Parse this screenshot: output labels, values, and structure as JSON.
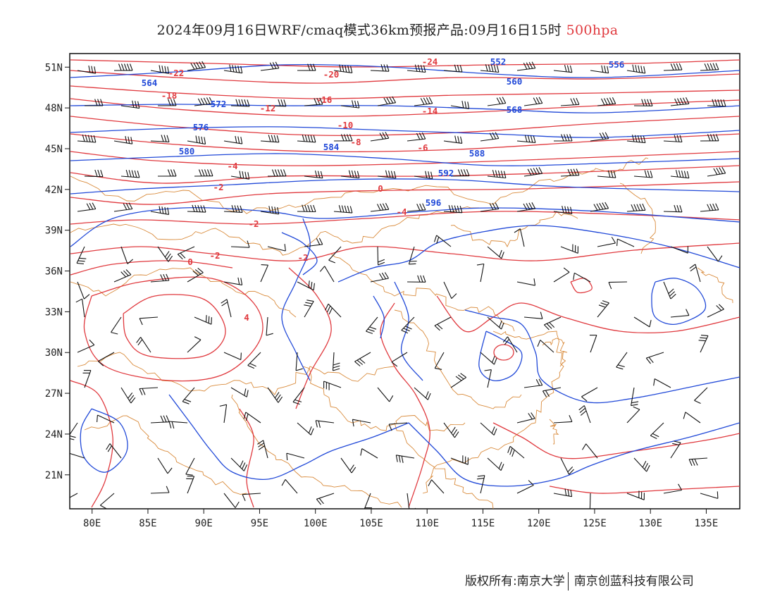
{
  "title": {
    "main": "2024年09月16日WRF/cmaq模式36km预报产品:09月16日15时",
    "level": "500hpa"
  },
  "colors": {
    "temperature_contour": "#e0393e",
    "geopotential_contour": "#2149d8",
    "wind_barb": "#111111",
    "boundary": "#d98b3c"
  },
  "map": {
    "lon_range": [
      78,
      138
    ],
    "lat_range": [
      18.5,
      52
    ],
    "lon_ticks": [
      "80E",
      "85E",
      "90E",
      "95E",
      "100E",
      "105E",
      "110E",
      "115E",
      "120E",
      "125E",
      "130E",
      "135E"
    ],
    "lat_ticks": [
      "51N",
      "48N",
      "45N",
      "42N",
      "39N",
      "36N",
      "33N",
      "30N",
      "27N",
      "24N",
      "21N"
    ]
  },
  "contour_labels": {
    "temperature": [
      "-24",
      "-22",
      "-20",
      "-18",
      "-16",
      "-14",
      "-12",
      "-10",
      "-8",
      "-6",
      "-4",
      "-2",
      "0",
      "-2",
      "-4",
      "-2",
      "0",
      "-2",
      "4"
    ],
    "geopotential": [
      "552",
      "556",
      "560",
      "564",
      "568",
      "572",
      "576",
      "580",
      "584",
      "588",
      "592",
      "596"
    ]
  },
  "copyright": {
    "left": "版权所有:南京大学",
    "right": "南京创蓝科技有限公司"
  }
}
